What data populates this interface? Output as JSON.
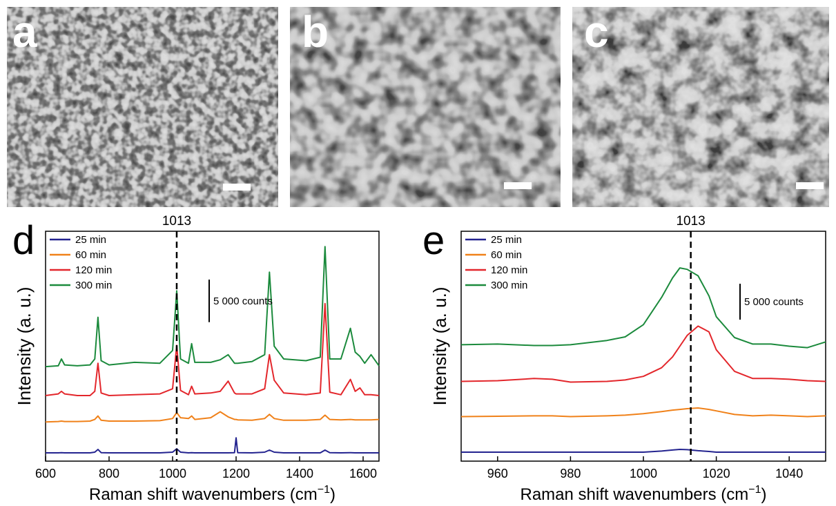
{
  "image_panels": [
    "a",
    "b",
    "c"
  ],
  "chart_data": [
    {
      "type": "line",
      "panel_label": "d",
      "y_label": "Intensity (a. u.)",
      "x_label": {
        "text": "Raman shift wavenumbers (cm",
        "superscript": "−1",
        "close": ")"
      },
      "marker_line": 1013,
      "scale_bar": {
        "value": 5000,
        "label": "5 000 counts"
      },
      "xlim": [
        600,
        1650
      ],
      "xticks": [
        600,
        800,
        1000,
        1200,
        1400,
        1600
      ],
      "ylim": [
        0,
        27000
      ],
      "x": [
        600,
        640,
        650,
        660,
        700,
        740,
        755,
        765,
        775,
        800,
        880,
        960,
        1000,
        1013,
        1025,
        1050,
        1060,
        1070,
        1120,
        1150,
        1175,
        1195,
        1200,
        1205,
        1250,
        1290,
        1305,
        1320,
        1350,
        1420,
        1465,
        1480,
        1495,
        1530,
        1560,
        1575,
        1590,
        1605,
        1625,
        1650
      ],
      "series": [
        {
          "name": "25 min",
          "color": "#23238f",
          "values": [
            970,
            970,
            1000,
            970,
            970,
            970,
            1050,
            1370,
            1000,
            970,
            970,
            970,
            1050,
            1450,
            1050,
            970,
            1000,
            970,
            970,
            970,
            970,
            1000,
            2740,
            1000,
            970,
            1050,
            1300,
            1050,
            970,
            970,
            970,
            1300,
            1000,
            970,
            1000,
            970,
            970,
            970,
            970,
            970
          ]
        },
        {
          "name": "60 min",
          "color": "#f08119",
          "values": [
            4600,
            4650,
            4700,
            4650,
            4650,
            4700,
            4900,
            5300,
            4800,
            4700,
            4700,
            4750,
            5000,
            5700,
            5100,
            5000,
            5300,
            4900,
            5100,
            5800,
            5200,
            4900,
            4900,
            4850,
            4800,
            5000,
            5500,
            5000,
            4800,
            4800,
            4900,
            5400,
            4900,
            4850,
            4900,
            4850,
            4850,
            4850,
            4850,
            4900
          ]
        },
        {
          "name": "120 min",
          "color": "#e3262b",
          "values": [
            7700,
            7900,
            8200,
            7900,
            7700,
            7700,
            8200,
            11500,
            8000,
            7700,
            7800,
            7900,
            8500,
            13600,
            8300,
            7800,
            8800,
            7900,
            8000,
            8200,
            9400,
            8000,
            7900,
            7900,
            7900,
            8500,
            12500,
            9500,
            8000,
            7800,
            8000,
            18500,
            8100,
            7800,
            9600,
            8200,
            8600,
            7800,
            7800,
            7700
          ]
        },
        {
          "name": "300 min",
          "color": "#1b8a3c",
          "values": [
            11100,
            11200,
            12000,
            11300,
            11200,
            11300,
            12000,
            16900,
            11800,
            11300,
            11600,
            11500,
            13000,
            20000,
            12000,
            11500,
            13800,
            11600,
            11600,
            11900,
            12500,
            11500,
            11500,
            11500,
            11700,
            12500,
            22200,
            13500,
            12000,
            11800,
            12200,
            25200,
            12000,
            12000,
            15600,
            12800,
            12300,
            11500,
            12500,
            11200
          ]
        }
      ]
    },
    {
      "type": "line",
      "panel_label": "e",
      "y_label": "Intensity (a. u.)",
      "x_label": {
        "text": "Raman shift wavenumbers (cm",
        "superscript": "−1",
        "close": ")"
      },
      "marker_line": 1013,
      "scale_bar": {
        "value": 5000,
        "label": "5 000 counts"
      },
      "xlim": [
        950,
        1050
      ],
      "xticks": [
        960,
        980,
        1000,
        1020,
        1040
      ],
      "ylim": [
        0,
        32000
      ],
      "x": [
        950,
        960,
        970,
        975,
        980,
        990,
        995,
        1000,
        1005,
        1008,
        1010,
        1012,
        1015,
        1018,
        1020,
        1025,
        1030,
        1035,
        1040,
        1045,
        1050
      ],
      "series": [
        {
          "name": "25 min",
          "color": "#23238f",
          "values": [
            1250,
            1250,
            1250,
            1250,
            1250,
            1250,
            1250,
            1250,
            1400,
            1550,
            1630,
            1600,
            1450,
            1350,
            1250,
            1250,
            1250,
            1250,
            1250,
            1250,
            1250
          ]
        },
        {
          "name": "60 min",
          "color": "#f08119",
          "values": [
            6200,
            6250,
            6300,
            6300,
            6200,
            6300,
            6400,
            6600,
            6900,
            7100,
            7200,
            7300,
            7400,
            7200,
            7000,
            6500,
            6300,
            6400,
            6300,
            6200,
            6300
          ]
        },
        {
          "name": "120 min",
          "color": "#e3262b",
          "values": [
            11100,
            11200,
            11500,
            11400,
            11000,
            11100,
            11300,
            11800,
            13000,
            14500,
            16000,
            17500,
            18800,
            18000,
            15500,
            12500,
            11500,
            11500,
            11400,
            11200,
            11100
          ]
        },
        {
          "name": "300 min",
          "color": "#1b8a3c",
          "values": [
            16200,
            16300,
            16100,
            16100,
            16200,
            16800,
            17300,
            19000,
            22800,
            25500,
            26900,
            26700,
            25800,
            23000,
            20100,
            17200,
            16300,
            16300,
            16000,
            15800,
            16600
          ]
        }
      ]
    }
  ]
}
